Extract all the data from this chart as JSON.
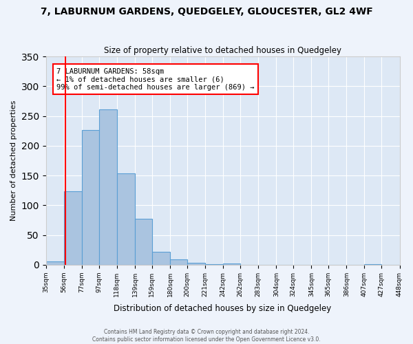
{
  "title": "7, LABURNUM GARDENS, QUEDGELEY, GLOUCESTER, GL2 4WF",
  "subtitle": "Size of property relative to detached houses in Quedgeley",
  "xlabel": "Distribution of detached houses by size in Quedgeley",
  "ylabel": "Number of detached properties",
  "bar_color": "#aac4e0",
  "bar_edge_color": "#5a9fd4",
  "background_color": "#dde8f5",
  "fig_background_color": "#eef3fb",
  "annotation_text": "7 LABURNUM GARDENS: 58sqm\n← 1% of detached houses are smaller (6)\n99% of semi-detached houses are larger (869) →",
  "red_line_x": 58,
  "bin_edges": [
    35,
    56,
    77,
    97,
    118,
    139,
    159,
    180,
    200,
    221,
    242,
    262,
    283,
    304,
    324,
    345,
    365,
    386,
    407,
    427,
    448
  ],
  "bin_counts": [
    6,
    124,
    226,
    261,
    154,
    77,
    22,
    9,
    3,
    1,
    2,
    0,
    0,
    0,
    0,
    0,
    0,
    0,
    1,
    0
  ],
  "ylim": [
    0,
    350
  ],
  "yticks": [
    0,
    50,
    100,
    150,
    200,
    250,
    300,
    350
  ],
  "footer_line1": "Contains HM Land Registry data © Crown copyright and database right 2024.",
  "footer_line2": "Contains public sector information licensed under the Open Government Licence v3.0."
}
